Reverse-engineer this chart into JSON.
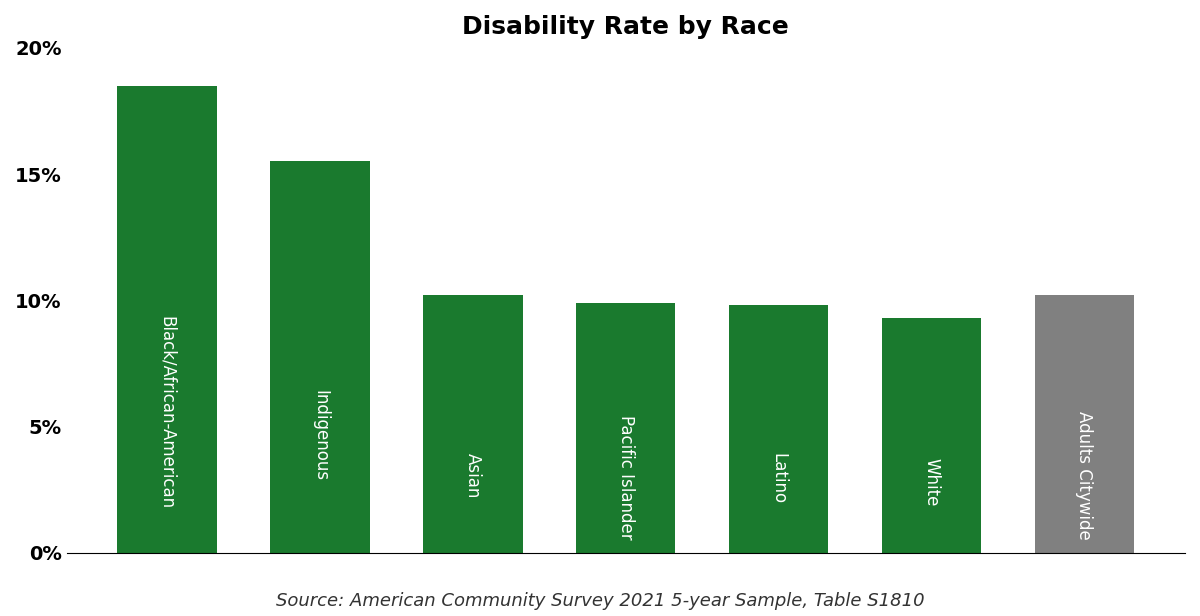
{
  "title": "Disability Rate by Race",
  "categories": [
    "Black/African-American",
    "Indigenous",
    "Asian",
    "Pacific Islander",
    "Latino",
    "White",
    "Adults Citywide"
  ],
  "values": [
    0.185,
    0.155,
    0.102,
    0.099,
    0.098,
    0.093,
    0.102
  ],
  "bar_colors": [
    "#1a7a2e",
    "#1a7a2e",
    "#1a7a2e",
    "#1a7a2e",
    "#1a7a2e",
    "#1a7a2e",
    "#808080"
  ],
  "label_color": "#ffffff",
  "ylim": [
    0,
    0.2
  ],
  "yticks": [
    0,
    0.05,
    0.1,
    0.15,
    0.2
  ],
  "ytick_labels": [
    "0%",
    "5%",
    "10%",
    "15%",
    "20%"
  ],
  "source_text": "Source: American Community Survey 2021 5-year Sample, Table S1810",
  "title_fontsize": 18,
  "label_fontsize": 12,
  "source_fontsize": 13,
  "background_color": "#ffffff"
}
